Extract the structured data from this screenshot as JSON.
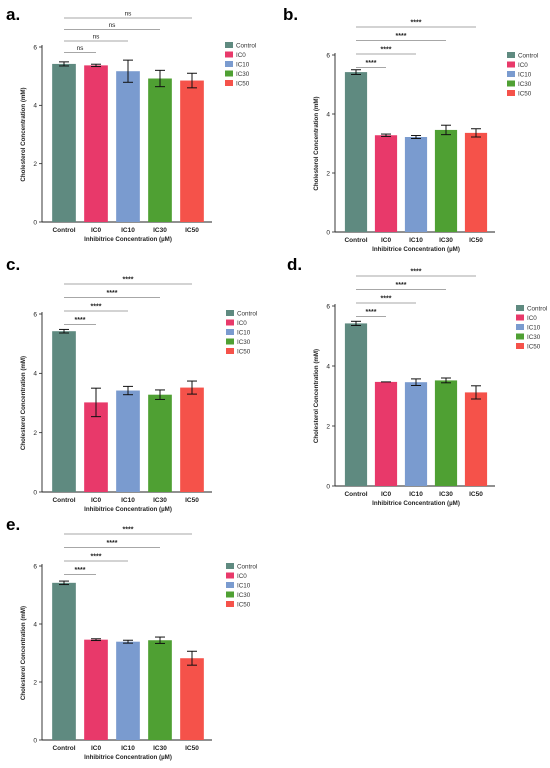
{
  "categories": [
    "Control",
    "IC0",
    "IC10",
    "IC30",
    "IC50"
  ],
  "legend": [
    "Control",
    "IC0",
    "IC10",
    "IC30",
    "IC50"
  ],
  "colors": {
    "Control": "#5f8a80",
    "IC0": "#e8396a",
    "IC10": "#7a9bcf",
    "IC30": "#4fa033",
    "IC50": "#f5524a",
    "axis": "#222222",
    "bracket": "#8a8a8a"
  },
  "chart_data": [
    {
      "type": "bar",
      "panel": "a.",
      "xlabel": "Inhibitrice Concentration (µM)",
      "ylabel": "Cholesterol Concentration (mM)",
      "ylim": [
        0,
        6
      ],
      "yticks": [
        0,
        2,
        4,
        6
      ],
      "categories": [
        "Control",
        "IC0",
        "IC10",
        "IC30",
        "IC50"
      ],
      "values": [
        5.42,
        5.37,
        5.17,
        4.92,
        4.85
      ],
      "errors": [
        0.07,
        0.04,
        0.38,
        0.28,
        0.25
      ],
      "comparisons": [
        {
          "from": "Control",
          "to": "IC0",
          "label": "ns"
        },
        {
          "from": "Control",
          "to": "IC10",
          "label": "ns"
        },
        {
          "from": "Control",
          "to": "IC30",
          "label": "ns"
        },
        {
          "from": "Control",
          "to": "IC50",
          "label": "ns"
        }
      ]
    },
    {
      "type": "bar",
      "panel": "b.",
      "xlabel": "Inhibitrice Concentration (µM)",
      "ylabel": "Cholesterol Concentration (mM)",
      "ylim": [
        0,
        6
      ],
      "yticks": [
        0,
        2,
        4,
        6
      ],
      "categories": [
        "Control",
        "IC0",
        "IC10",
        "IC30",
        "IC50"
      ],
      "values": [
        5.42,
        3.28,
        3.22,
        3.46,
        3.36
      ],
      "errors": [
        0.08,
        0.04,
        0.05,
        0.16,
        0.14
      ],
      "comparisons": [
        {
          "from": "Control",
          "to": "IC0",
          "label": "****"
        },
        {
          "from": "Control",
          "to": "IC10",
          "label": "****"
        },
        {
          "from": "Control",
          "to": "IC30",
          "label": "****"
        },
        {
          "from": "Control",
          "to": "IC50",
          "label": "****"
        }
      ]
    },
    {
      "type": "bar",
      "panel": "c.",
      "xlabel": "Inhibitrice Concentration (µM)",
      "ylabel": "Cholesterol Concentration (mM)",
      "ylim": [
        0,
        6
      ],
      "yticks": [
        0,
        2,
        4,
        6
      ],
      "categories": [
        "Control",
        "IC0",
        "IC10",
        "IC30",
        "IC50"
      ],
      "values": [
        5.42,
        3.02,
        3.42,
        3.28,
        3.52
      ],
      "errors": [
        0.06,
        0.48,
        0.14,
        0.16,
        0.22
      ],
      "comparisons": [
        {
          "from": "Control",
          "to": "IC0",
          "label": "****"
        },
        {
          "from": "Control",
          "to": "IC10",
          "label": "****"
        },
        {
          "from": "Control",
          "to": "IC30",
          "label": "****"
        },
        {
          "from": "Control",
          "to": "IC50",
          "label": "****"
        }
      ]
    },
    {
      "type": "bar",
      "panel": "d.",
      "xlabel": "Inhibitrice Concentration (µM)",
      "ylabel": "Cholesterol Concentration (mM)",
      "ylim": [
        0,
        6
      ],
      "yticks": [
        0,
        2,
        4,
        6
      ],
      "categories": [
        "Control",
        "IC0",
        "IC10",
        "IC30",
        "IC50"
      ],
      "values": [
        5.42,
        3.47,
        3.46,
        3.52,
        3.12
      ],
      "errors": [
        0.07,
        0.0,
        0.11,
        0.08,
        0.22
      ],
      "comparisons": [
        {
          "from": "Control",
          "to": "IC0",
          "label": "****"
        },
        {
          "from": "Control",
          "to": "IC10",
          "label": "****"
        },
        {
          "from": "Control",
          "to": "IC30",
          "label": "****"
        },
        {
          "from": "Control",
          "to": "IC50",
          "label": "****"
        }
      ]
    },
    {
      "type": "bar",
      "panel": "e.",
      "xlabel": "Inhibitrice Concentration (µM)",
      "ylabel": "Cholesterol Concentration (mM)",
      "ylim": [
        0,
        6
      ],
      "yticks": [
        0,
        2,
        4,
        6
      ],
      "categories": [
        "Control",
        "IC0",
        "IC10",
        "IC30",
        "IC50"
      ],
      "values": [
        5.42,
        3.46,
        3.39,
        3.44,
        2.82
      ],
      "errors": [
        0.06,
        0.03,
        0.05,
        0.11,
        0.24
      ],
      "comparisons": [
        {
          "from": "Control",
          "to": "IC0",
          "label": "****"
        },
        {
          "from": "Control",
          "to": "IC10",
          "label": "****"
        },
        {
          "from": "Control",
          "to": "IC30",
          "label": "****"
        },
        {
          "from": "Control",
          "to": "IC50",
          "label": "****"
        }
      ]
    }
  ]
}
